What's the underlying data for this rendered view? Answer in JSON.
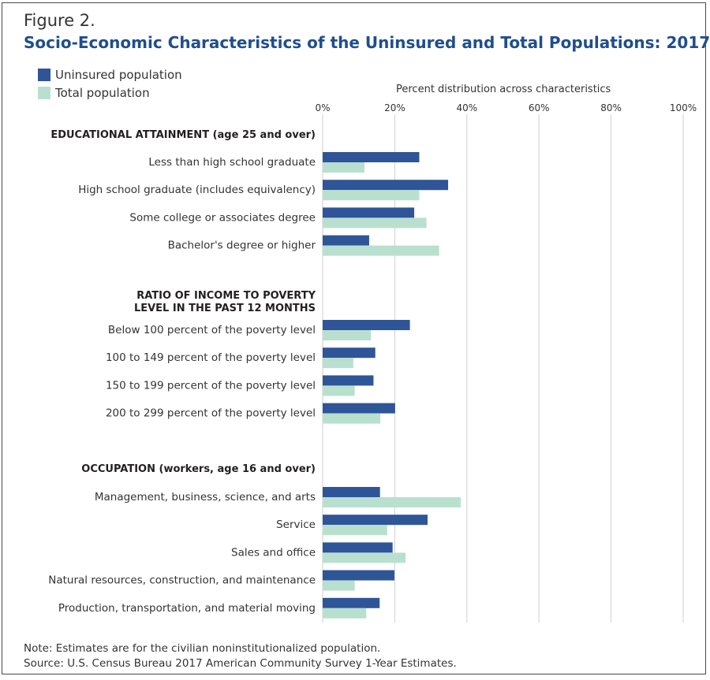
{
  "figure_label": "Figure 2.",
  "title": "Socio-Economic Characteristics of the Uninsured and Total Populations: 2017",
  "legend": {
    "uninsured": "Uninsured population",
    "total": "Total population"
  },
  "axis_title": "Percent distribution across characteristics",
  "note": "Note: Estimates are for the civilian noninstitutionalized population.",
  "source": "Source: U.S. Census Bureau 2017 American Community Survey 1-Year Estimates.",
  "colors": {
    "uninsured": "#2e5597",
    "total": "#b9e0cf",
    "grid": "#cfcfcf"
  },
  "chart_data": {
    "type": "bar",
    "orientation": "horizontal",
    "xlim": [
      0,
      100
    ],
    "x_ticks": [
      "0%",
      "20%",
      "40%",
      "60%",
      "80%",
      "100%"
    ],
    "grid": true,
    "legend_position": "top-left",
    "series_names": [
      "Uninsured population",
      "Total population"
    ],
    "groups": [
      {
        "heading": [
          "EDUCATIONAL ATTAINMENT (age 25 and over)"
        ],
        "categories": [
          {
            "label": "Less than high school graduate",
            "uninsured": 26.8,
            "total": 11.6
          },
          {
            "label": "High school graduate (includes equivalency)",
            "uninsured": 34.8,
            "total": 26.8
          },
          {
            "label": "Some college or associates degree",
            "uninsured": 25.4,
            "total": 28.8
          },
          {
            "label": "Bachelor's degree or higher",
            "uninsured": 12.9,
            "total": 32.3
          }
        ]
      },
      {
        "heading": [
          "RATIO OF INCOME TO POVERTY",
          "LEVEL IN THE PAST 12 MONTHS"
        ],
        "categories": [
          {
            "label": "Below 100 percent of the poverty level",
            "uninsured": 24.2,
            "total": 13.4
          },
          {
            "label": "100 to 149 percent of the poverty level",
            "uninsured": 14.6,
            "total": 8.5
          },
          {
            "label": "150 to 199 percent of the poverty level",
            "uninsured": 14.1,
            "total": 8.9
          },
          {
            "label": "200 to 299 percent of the poverty level",
            "uninsured": 20.1,
            "total": 16.0
          }
        ]
      },
      {
        "heading": [
          "OCCUPATION (workers, age 16 and over)"
        ],
        "categories": [
          {
            "label": "Management, business, science, and arts",
            "uninsured": 15.9,
            "total": 38.3
          },
          {
            "label": "Service",
            "uninsured": 29.1,
            "total": 17.9
          },
          {
            "label": "Sales and office",
            "uninsured": 19.4,
            "total": 23.0
          },
          {
            "label": "Natural resources, construction, and maintenance",
            "uninsured": 19.9,
            "total": 8.9
          },
          {
            "label": "Production, transportation, and material moving",
            "uninsured": 15.8,
            "total": 12.1
          }
        ]
      }
    ]
  }
}
